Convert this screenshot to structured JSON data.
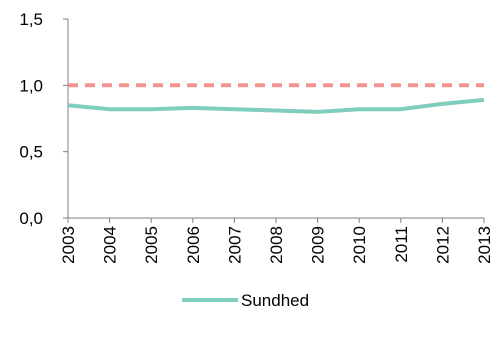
{
  "chart_data": {
    "type": "line",
    "x": [
      "2003",
      "2004",
      "2005",
      "2006",
      "2007",
      "2008",
      "2009",
      "2010",
      "2011",
      "2012",
      "2013"
    ],
    "ylim": [
      0,
      1.5
    ],
    "yticks": [
      "0,0",
      "0,5",
      "1,0",
      "1,5"
    ],
    "ytick_values": [
      0,
      0.5,
      1.0,
      1.5
    ],
    "grid": false,
    "legend_position": "bottom",
    "series": [
      {
        "name": "Sundhed",
        "color": "#7fcdbb",
        "values": [
          0.85,
          0.82,
          0.82,
          0.83,
          0.82,
          0.81,
          0.8,
          0.82,
          0.82,
          0.86,
          0.89
        ]
      },
      {
        "color": "#f4938f",
        "style": "dashed",
        "values": [
          1.0,
          1.0,
          1.0,
          1.0,
          1.0,
          1.0,
          1.0,
          1.0,
          1.0,
          1.0,
          1.0
        ]
      }
    ]
  }
}
